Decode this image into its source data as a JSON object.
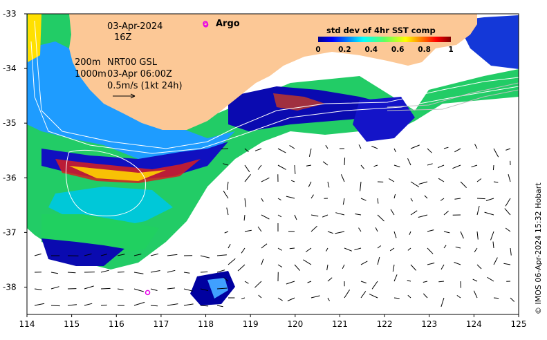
{
  "map": {
    "date": "03-Apr-2024",
    "hour": "16Z",
    "line_200m": "200m",
    "product": "NRT00 GSL",
    "line_1000m": "1000m",
    "current_time": "03-Apr 06:00Z",
    "scale_label": "0.5m/s (1kt 24h)",
    "argo_label": "Argo",
    "legend_title": "std dev of 4hr SST comp",
    "legend_ticks": [
      "0",
      "0.2",
      "0.4",
      "0.6",
      "0.8",
      "1"
    ],
    "credit": "© IMOS 06-Apr-2024 15:32 Hobart",
    "x_ticks": [
      "114",
      "115",
      "116",
      "117",
      "118",
      "119",
      "120",
      "121",
      "122",
      "123",
      "124",
      "125"
    ],
    "y_ticks": [
      "-33",
      "-34",
      "-35",
      "-36",
      "-37",
      "-38"
    ],
    "extent": {
      "lon_min": 114,
      "lon_max": 125,
      "lat_min": -38.5,
      "lat_max": -33
    },
    "argo_floats": [
      {
        "lon": 118.0,
        "lat": -33.2
      },
      {
        "lon": 116.7,
        "lat": -38.1
      }
    ],
    "colors": {
      "land": "#fcc896",
      "argo": "#e800e8",
      "colormap": [
        "#00008f",
        "#0000ff",
        "#0080ff",
        "#00ffff",
        "#40ff80",
        "#80ff00",
        "#ffff00",
        "#ff8000",
        "#ff0000",
        "#800000"
      ]
    }
  }
}
